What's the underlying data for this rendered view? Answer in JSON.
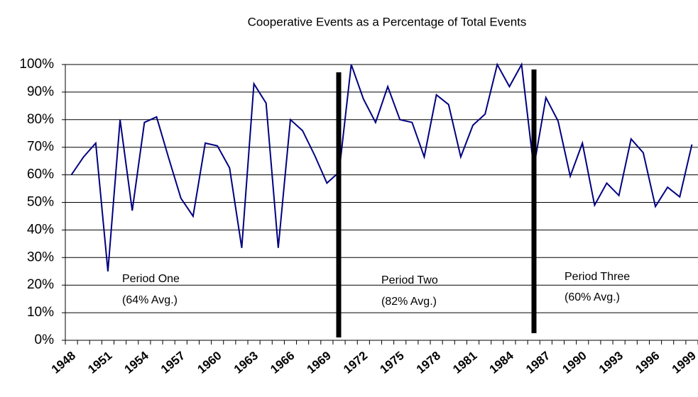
{
  "chart_data": {
    "type": "line",
    "title": "Cooperative Events as a Percentage of Total Events",
    "categories": [
      "1948",
      null,
      null,
      "1951",
      null,
      null,
      "1954",
      null,
      null,
      "1957",
      null,
      null,
      "1960",
      null,
      null,
      "1963",
      null,
      null,
      "1966",
      null,
      null,
      "1969",
      null,
      null,
      "1972",
      null,
      null,
      "1975",
      null,
      null,
      "1978",
      null,
      null,
      "1981",
      null,
      null,
      "1984",
      null,
      null,
      "1987",
      null,
      null,
      "1990",
      null,
      null,
      "1993",
      null,
      null,
      "1996",
      null,
      null,
      "1999"
    ],
    "series": [
      {
        "name": "Cooperative Events",
        "color": "#000080",
        "values": [
          60,
          66.5,
          71.5,
          25,
          80,
          47,
          79,
          81,
          66,
          51.5,
          45,
          71.5,
          70.5,
          62.5,
          33.5,
          93,
          86,
          33.5,
          80,
          76,
          67,
          57,
          61,
          100,
          87.5,
          79,
          92,
          80,
          79,
          66.5,
          89,
          85.5,
          66.5,
          78,
          82,
          100,
          92,
          100,
          62.5,
          88,
          79.5,
          59.5,
          71.5,
          49,
          57,
          52.5,
          73,
          68,
          48.5,
          55.5,
          52,
          71
        ]
      }
    ],
    "ylim": [
      0,
      100
    ],
    "yticks": [
      {
        "value": 0,
        "label": "0%"
      },
      {
        "value": 10,
        "label": "10%"
      },
      {
        "value": 20,
        "label": "20%"
      },
      {
        "value": 30,
        "label": "30%"
      },
      {
        "value": 40,
        "label": "40%"
      },
      {
        "value": 50,
        "label": "50%"
      },
      {
        "value": 60,
        "label": "60%"
      },
      {
        "value": 70,
        "label": "70%"
      },
      {
        "value": 80,
        "label": "80%"
      },
      {
        "value": 90,
        "label": "90%"
      },
      {
        "value": 100,
        "label": "100%"
      }
    ],
    "grid": true,
    "annotations": [
      "Period One",
      "(64% Avg.)",
      "Period Two",
      "(82% Avg.)",
      "Period Three",
      "(60% Avg.)"
    ]
  }
}
